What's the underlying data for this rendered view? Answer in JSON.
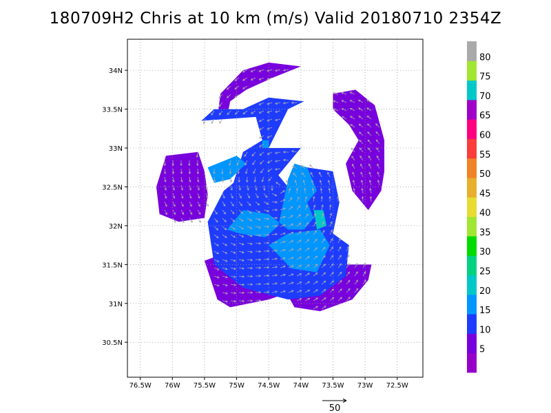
{
  "title": "180709H2 Chris at 10 km (m/s) Valid 20180710 2354Z",
  "chart_data": {
    "type": "heatmap",
    "xlim": [
      -76.7,
      -72.1
    ],
    "ylim": [
      30.05,
      34.4
    ],
    "x_ticks": [
      {
        "v": -76.5,
        "label": "76.5W"
      },
      {
        "v": -76,
        "label": "76W"
      },
      {
        "v": -75.5,
        "label": "75.5W"
      },
      {
        "v": -75,
        "label": "75W"
      },
      {
        "v": -74.5,
        "label": "74.5W"
      },
      {
        "v": -74,
        "label": "74W"
      },
      {
        "v": -73.5,
        "label": "73.5W"
      },
      {
        "v": -73,
        "label": "73W"
      },
      {
        "v": -72.5,
        "label": "72.5W"
      }
    ],
    "y_ticks": [
      {
        "v": 30.5,
        "label": "30.5N"
      },
      {
        "v": 31,
        "label": "31N"
      },
      {
        "v": 31.5,
        "label": "31.5N"
      },
      {
        "v": 32,
        "label": "32N"
      },
      {
        "v": 32.5,
        "label": "32.5N"
      },
      {
        "v": 33,
        "label": "33N"
      },
      {
        "v": 33.5,
        "label": "33.5N"
      },
      {
        "v": 34,
        "label": "34N"
      }
    ],
    "grid": true,
    "colorbar": {
      "labels": [
        "5",
        "10",
        "15",
        "20",
        "25",
        "30",
        "35",
        "40",
        "45",
        "50",
        "55",
        "60",
        "65",
        "70",
        "75",
        "80"
      ],
      "colors": [
        "#9600c8",
        "#7800dc",
        "#1e3cff",
        "#0096ff",
        "#00c8c8",
        "#00d282",
        "#00dc00",
        "#a0e632",
        "#e6dc32",
        "#e6af2d",
        "#f08228",
        "#fa3c3c",
        "#ff0080",
        "#a000c8",
        "#00c8c8",
        "#a0e632",
        "#aaaaaa"
      ]
    },
    "reference_vector": {
      "label": "50"
    },
    "regions": [
      {
        "level": 1,
        "poly": [
          [
            -74.9,
            34.0
          ],
          [
            -74.5,
            34.1
          ],
          [
            -74.0,
            34.05
          ],
          [
            -74.45,
            33.9
          ],
          [
            -74.85,
            33.75
          ],
          [
            -75.1,
            33.6
          ],
          [
            -75.15,
            33.4
          ],
          [
            -75.3,
            33.4
          ],
          [
            -75.25,
            33.7
          ]
        ]
      },
      {
        "level": 1,
        "poly": [
          [
            -76.1,
            32.9
          ],
          [
            -75.6,
            32.95
          ],
          [
            -75.5,
            32.7
          ],
          [
            -75.45,
            32.4
          ],
          [
            -75.5,
            32.1
          ],
          [
            -75.9,
            32.05
          ],
          [
            -76.2,
            32.15
          ],
          [
            -76.25,
            32.5
          ]
        ]
      },
      {
        "level": 1,
        "poly": [
          [
            -73.5,
            33.7
          ],
          [
            -73.15,
            33.75
          ],
          [
            -72.85,
            33.55
          ],
          [
            -72.7,
            33.1
          ],
          [
            -72.7,
            32.7
          ],
          [
            -72.75,
            32.45
          ],
          [
            -72.95,
            32.2
          ],
          [
            -73.2,
            32.45
          ],
          [
            -73.3,
            32.8
          ],
          [
            -73.1,
            33.1
          ],
          [
            -73.25,
            33.3
          ],
          [
            -73.5,
            33.5
          ]
        ]
      },
      {
        "level": 1,
        "poly": [
          [
            -75.5,
            31.55
          ],
          [
            -75.0,
            31.7
          ],
          [
            -74.55,
            31.6
          ],
          [
            -74.3,
            31.25
          ],
          [
            -74.1,
            30.95
          ],
          [
            -73.7,
            30.9
          ],
          [
            -73.2,
            31.05
          ],
          [
            -72.95,
            31.3
          ],
          [
            -72.9,
            31.5
          ],
          [
            -73.3,
            31.5
          ],
          [
            -73.8,
            31.25
          ],
          [
            -74.5,
            31.05
          ],
          [
            -75.1,
            30.95
          ],
          [
            -75.3,
            31.05
          ]
        ]
      },
      {
        "level": 2,
        "poly": [
          [
            -75.55,
            33.35
          ],
          [
            -74.7,
            33.4
          ],
          [
            -74.6,
            33.1
          ],
          [
            -74.9,
            32.95
          ],
          [
            -75.05,
            32.55
          ],
          [
            -75.2,
            32.45
          ],
          [
            -75.45,
            32.05
          ],
          [
            -75.35,
            31.5
          ],
          [
            -74.9,
            31.2
          ],
          [
            -74.2,
            31.05
          ],
          [
            -73.7,
            31.1
          ],
          [
            -73.3,
            31.35
          ],
          [
            -73.25,
            31.75
          ],
          [
            -73.5,
            31.9
          ],
          [
            -73.4,
            32.3
          ],
          [
            -73.5,
            32.7
          ],
          [
            -73.9,
            32.75
          ],
          [
            -74.2,
            32.5
          ],
          [
            -74.35,
            32.65
          ],
          [
            -74.0,
            33.0
          ],
          [
            -74.5,
            33.0
          ],
          [
            -74.2,
            33.5
          ],
          [
            -73.95,
            33.6
          ],
          [
            -74.5,
            33.65
          ],
          [
            -74.9,
            33.5
          ],
          [
            -75.35,
            33.5
          ]
        ]
      },
      {
        "level": 3,
        "poly": [
          [
            -74.9,
            32.2
          ],
          [
            -74.5,
            32.15
          ],
          [
            -74.2,
            31.95
          ],
          [
            -73.95,
            31.95
          ],
          [
            -73.8,
            32.1
          ],
          [
            -73.9,
            32.3
          ],
          [
            -73.75,
            32.45
          ],
          [
            -73.9,
            32.75
          ],
          [
            -74.1,
            32.8
          ],
          [
            -74.2,
            32.6
          ],
          [
            -74.35,
            32.0
          ],
          [
            -74.55,
            31.85
          ],
          [
            -74.95,
            31.9
          ],
          [
            -75.15,
            31.95
          ]
        ]
      },
      {
        "level": 3,
        "poly": [
          [
            -74.5,
            31.75
          ],
          [
            -74.15,
            31.45
          ],
          [
            -73.75,
            31.4
          ],
          [
            -73.55,
            31.75
          ],
          [
            -73.7,
            31.95
          ],
          [
            -74.2,
            31.9
          ]
        ]
      },
      {
        "level": 4,
        "poly": [
          [
            -73.8,
            32.2
          ],
          [
            -73.65,
            32.2
          ],
          [
            -73.6,
            32.0
          ],
          [
            -73.75,
            31.95
          ]
        ]
      },
      {
        "level": 3,
        "poly": [
          [
            -75.45,
            32.75
          ],
          [
            -75.0,
            32.9
          ],
          [
            -74.85,
            32.8
          ],
          [
            -75.1,
            32.6
          ],
          [
            -75.35,
            32.55
          ]
        ]
      },
      {
        "level": 3,
        "poly": [
          [
            -74.6,
            33.1
          ],
          [
            -74.5,
            33.1
          ],
          [
            -74.5,
            33.0
          ],
          [
            -74.6,
            33.0
          ]
        ]
      }
    ]
  }
}
